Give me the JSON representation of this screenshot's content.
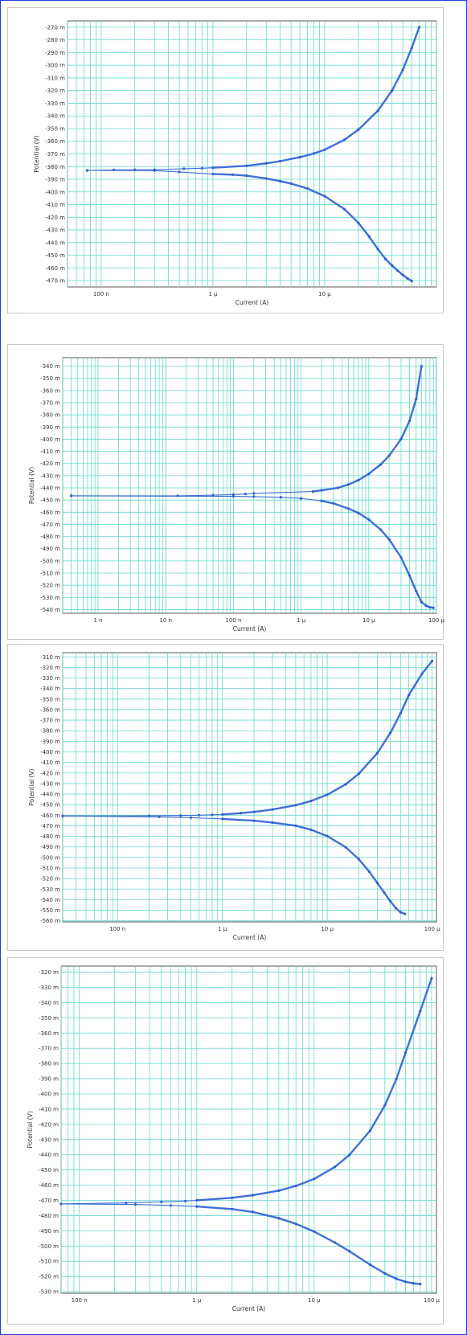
{
  "chart_data": [
    {
      "type": "line",
      "xlabel": "Current (A)",
      "ylabel": "Potential (V)",
      "x_scale": "log",
      "xlim": [
        5e-08,
        0.0001
      ],
      "ylim": [
        -475,
        -265
      ],
      "x_ticks": [
        {
          "value": 1e-07,
          "label": "100 n"
        },
        {
          "value": 1e-06,
          "label": "1 µ"
        },
        {
          "value": 1e-05,
          "label": "10 µ"
        }
      ],
      "y_ticks": [
        -270,
        -280,
        -290,
        -300,
        -310,
        -320,
        -330,
        -340,
        -350,
        -360,
        -370,
        -380,
        -390,
        -400,
        -410,
        -420,
        -430,
        -440,
        -450,
        -460,
        -470
      ],
      "y_unit": " m",
      "grid": true,
      "series": [
        {
          "points": [
            [
              7.5e-08,
              -383
            ],
            [
              1.3e-07,
              -382.6
            ],
            [
              2e-07,
              -382.5
            ],
            [
              3e-07,
              -382.5
            ],
            [
              5.5e-07,
              -381.7
            ],
            [
              8e-07,
              -381.3
            ],
            [
              1e-06,
              -380.9
            ],
            [
              2e-06,
              -379.4
            ],
            [
              3e-06,
              -377.4
            ],
            [
              4e-06,
              -375.7
            ],
            [
              6e-06,
              -372.6
            ],
            [
              8e-06,
              -369.7
            ],
            [
              1e-05,
              -366.7
            ],
            [
              1.5e-05,
              -358.9
            ],
            [
              2e-05,
              -350.9
            ],
            [
              3e-05,
              -335.8
            ],
            [
              4e-05,
              -320
            ],
            [
              5e-05,
              -303.7
            ],
            [
              6e-05,
              -286.4
            ],
            [
              7e-05,
              -270
            ]
          ]
        },
        {
          "points": [
            [
              7.5e-08,
              -383
            ],
            [
              3e-07,
              -383.2
            ],
            [
              5e-07,
              -384.2
            ],
            [
              1e-06,
              -385.9
            ],
            [
              1.5e-06,
              -386.4
            ],
            [
              2e-06,
              -387.2
            ],
            [
              3e-06,
              -389.4
            ],
            [
              4e-06,
              -391.5
            ],
            [
              5e-06,
              -393.4
            ],
            [
              7e-06,
              -397.3
            ],
            [
              1e-05,
              -403.4
            ],
            [
              1.5e-05,
              -413.5
            ],
            [
              2e-05,
              -424.4
            ],
            [
              2.5e-05,
              -435.3
            ],
            [
              3e-05,
              -445.3
            ],
            [
              3.5e-05,
              -452.9
            ],
            [
              4e-05,
              -458.1
            ],
            [
              4.5e-05,
              -462.2
            ],
            [
              5e-05,
              -465.5
            ],
            [
              5.5e-05,
              -468.3
            ],
            [
              6e-05,
              -470.4
            ]
          ]
        }
      ]
    },
    {
      "type": "line",
      "xlabel": "Current (A)",
      "ylabel": "Potential (V)",
      "x_scale": "log",
      "xlim": [
        3e-10,
        0.0001
      ],
      "ylim": [
        -543,
        -333
      ],
      "x_ticks": [
        {
          "value": 1e-09,
          "label": "1 n"
        },
        {
          "value": 1e-08,
          "label": "10 n"
        },
        {
          "value": 1e-07,
          "label": "100 n"
        },
        {
          "value": 1e-06,
          "label": "1 µ"
        },
        {
          "value": 1e-05,
          "label": "10 µ"
        },
        {
          "value": 0.0001,
          "label": "100 µ"
        }
      ],
      "y_ticks": [
        -340,
        -350,
        -360,
        -370,
        -380,
        -390,
        -400,
        -410,
        -420,
        -430,
        -440,
        -450,
        -460,
        -470,
        -480,
        -490,
        -500,
        -510,
        -520,
        -530,
        -540
      ],
      "y_unit": " m",
      "grid": true,
      "series": [
        {
          "points": [
            [
              4e-10,
              -446.5
            ],
            [
              1.5e-08,
              -446.5
            ],
            [
              5e-08,
              -446
            ],
            [
              1e-07,
              -445.5
            ],
            [
              1.5e-07,
              -445
            ],
            [
              2e-07,
              -444.5
            ],
            [
              1.5e-06,
              -443
            ],
            [
              2e-06,
              -442
            ],
            [
              3.5e-06,
              -440
            ],
            [
              5e-06,
              -437.2
            ],
            [
              7e-06,
              -433.7
            ],
            [
              1e-05,
              -428.5
            ],
            [
              1.5e-05,
              -420.8
            ],
            [
              2e-05,
              -413.5
            ],
            [
              3e-05,
              -399.8
            ],
            [
              4e-05,
              -385
            ],
            [
              5e-05,
              -367
            ],
            [
              6e-05,
              -340
            ]
          ]
        },
        {
          "points": [
            [
              4e-10,
              -446.5
            ],
            [
              1e-07,
              -447
            ],
            [
              2e-07,
              -447.2
            ],
            [
              5e-07,
              -447.7
            ],
            [
              1e-06,
              -448.6
            ],
            [
              2e-06,
              -450.7
            ],
            [
              3e-06,
              -452.7
            ],
            [
              5e-06,
              -457
            ],
            [
              7e-06,
              -460.6
            ],
            [
              1e-05,
              -466
            ],
            [
              1.5e-05,
              -474.3
            ],
            [
              2e-05,
              -482.4
            ],
            [
              3e-05,
              -497.2
            ],
            [
              4e-05,
              -512
            ],
            [
              5e-05,
              -524.8
            ],
            [
              6e-05,
              -533.7
            ],
            [
              7e-05,
              -536.7
            ],
            [
              8e-05,
              -538.1
            ],
            [
              9e-05,
              -538.5
            ]
          ]
        }
      ]
    },
    {
      "type": "line",
      "xlabel": "Current (A)",
      "ylabel": "Potential (V)",
      "x_scale": "log",
      "xlim": [
        3e-08,
        0.00011
      ],
      "ylim": [
        -561,
        -306
      ],
      "x_ticks": [
        {
          "value": 1e-07,
          "label": "100 n"
        },
        {
          "value": 1e-06,
          "label": "1 µ"
        },
        {
          "value": 1e-05,
          "label": "10 µ"
        },
        {
          "value": 0.0001,
          "label": "100 µ"
        }
      ],
      "y_ticks": [
        -310,
        -320,
        -330,
        -340,
        -350,
        -360,
        -370,
        -380,
        -390,
        -400,
        -410,
        -420,
        -430,
        -440,
        -450,
        -460,
        -470,
        -480,
        -490,
        -500,
        -510,
        -520,
        -530,
        -540,
        -550,
        -560
      ],
      "y_unit": " m",
      "grid": true,
      "series": [
        {
          "points": [
            [
              3e-08,
              -460.7
            ],
            [
              2e-07,
              -460.6
            ],
            [
              4e-07,
              -460.3
            ],
            [
              6e-07,
              -460
            ],
            [
              8e-07,
              -459.6
            ],
            [
              1e-06,
              -459.2
            ],
            [
              1.5e-06,
              -458
            ],
            [
              2e-06,
              -456.9
            ],
            [
              3e-06,
              -454.6
            ],
            [
              5e-06,
              -450.5
            ],
            [
              7e-06,
              -446.5
            ],
            [
              1e-05,
              -440.6
            ],
            [
              1.5e-05,
              -430.7
            ],
            [
              2e-05,
              -420.7
            ],
            [
              3e-05,
              -401.2
            ],
            [
              4e-05,
              -382
            ],
            [
              5e-05,
              -363.5
            ],
            [
              6e-05,
              -346.1
            ],
            [
              8e-05,
              -326
            ],
            [
              0.0001,
              -314
            ]
          ]
        },
        {
          "points": [
            [
              3e-08,
              -460.7
            ],
            [
              2.5e-07,
              -461.6
            ],
            [
              5e-07,
              -462.3
            ],
            [
              1e-06,
              -463.5
            ],
            [
              2e-06,
              -465.2
            ],
            [
              3e-06,
              -466.9
            ],
            [
              5e-06,
              -469.9
            ],
            [
              7e-06,
              -473.7
            ],
            [
              1e-05,
              -479.7
            ],
            [
              1.5e-05,
              -490.3
            ],
            [
              2e-05,
              -501.6
            ],
            [
              2.5e-05,
              -513.2
            ],
            [
              3e-05,
              -524
            ],
            [
              3.5e-05,
              -533.4
            ],
            [
              4e-05,
              -541.5
            ],
            [
              4.5e-05,
              -547.9
            ],
            [
              5e-05,
              -551.9
            ],
            [
              5.5e-05,
              -553.5
            ]
          ]
        }
      ]
    },
    {
      "type": "line",
      "xlabel": "Current (A)",
      "ylabel": "Potential (V)",
      "x_scale": "log",
      "xlim": [
        7e-08,
        0.00011
      ],
      "ylim": [
        -531,
        -316
      ],
      "x_ticks": [
        {
          "value": 1e-07,
          "label": "100 n"
        },
        {
          "value": 1e-06,
          "label": "1 µ"
        },
        {
          "value": 1e-05,
          "label": "10 µ"
        },
        {
          "value": 0.0001,
          "label": "100 µ"
        }
      ],
      "y_ticks": [
        -320,
        -330,
        -340,
        -350,
        -360,
        -370,
        -380,
        -390,
        -400,
        -410,
        -420,
        -430,
        -440,
        -450,
        -460,
        -470,
        -480,
        -490,
        -500,
        -510,
        -520,
        -530
      ],
      "y_unit": " m",
      "grid": true,
      "series": [
        {
          "points": [
            [
              7e-08,
              -472.3
            ],
            [
              2.5e-07,
              -471.6
            ],
            [
              5e-07,
              -471
            ],
            [
              8e-07,
              -470.4
            ],
            [
              1e-06,
              -470
            ],
            [
              2e-06,
              -468.3
            ],
            [
              3e-06,
              -466.6
            ],
            [
              5e-06,
              -463.6
            ],
            [
              7e-06,
              -460.5
            ],
            [
              1e-05,
              -455.9
            ],
            [
              1.5e-05,
              -448
            ],
            [
              2e-05,
              -440.1
            ],
            [
              3e-05,
              -424.1
            ],
            [
              4e-05,
              -407.5
            ],
            [
              5e-05,
              -390.4
            ],
            [
              6e-05,
              -373
            ],
            [
              8e-05,
              -345.6
            ],
            [
              0.0001,
              -324
            ]
          ]
        },
        {
          "points": [
            [
              7e-08,
              -472.3
            ],
            [
              3e-07,
              -472.7
            ],
            [
              6e-07,
              -473.3
            ],
            [
              1e-06,
              -474
            ],
            [
              2e-06,
              -475.7
            ],
            [
              3e-06,
              -477.6
            ],
            [
              5e-06,
              -481.7
            ],
            [
              7e-06,
              -485.4
            ],
            [
              1e-05,
              -490.5
            ],
            [
              1.5e-05,
              -497.7
            ],
            [
              2e-05,
              -503.5
            ],
            [
              3e-05,
              -512.3
            ],
            [
              4e-05,
              -518
            ],
            [
              5e-05,
              -521.5
            ],
            [
              6e-05,
              -523.5
            ],
            [
              7e-05,
              -524.5
            ],
            [
              8e-05,
              -525
            ]
          ]
        }
      ]
    }
  ]
}
